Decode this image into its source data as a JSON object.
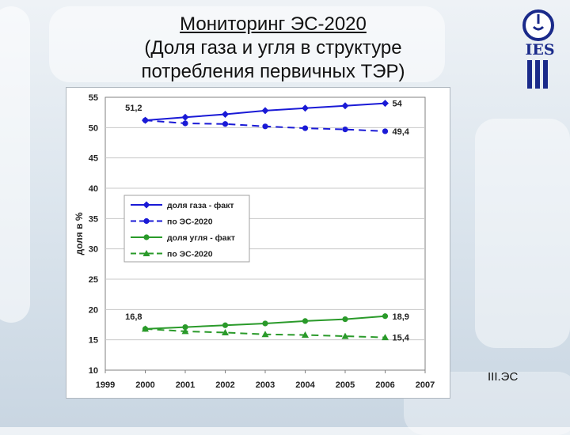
{
  "slide": {
    "title_line1": "Мониторинг ЭС-2020",
    "title_line2": "(Доля газа и угля в структуре",
    "title_line3": "потребления первичных ТЭР)",
    "logo_text": "IES",
    "footer_label": "III.ЭС"
  },
  "chart_data": {
    "type": "line",
    "title": "",
    "xlabel": "",
    "ylabel": "доля в %",
    "xlim": [
      1999,
      2007
    ],
    "ylim": [
      10,
      55
    ],
    "x_ticks": [
      1999,
      2000,
      2001,
      2002,
      2003,
      2004,
      2005,
      2006,
      2007
    ],
    "y_ticks": [
      10,
      15,
      20,
      25,
      30,
      35,
      40,
      45,
      50,
      55
    ],
    "grid": "horizontal",
    "legend_position": "left-middle",
    "series": [
      {
        "name": "доля газа - факт",
        "color": "#1a1ad6",
        "style": "solid",
        "marker": "diamond",
        "x": [
          2000,
          2001,
          2002,
          2003,
          2004,
          2005,
          2006
        ],
        "y": [
          51.2,
          51.7,
          52.2,
          52.8,
          53.2,
          53.6,
          54.0
        ]
      },
      {
        "name": "по ЭС-2020",
        "color": "#1a1ad6",
        "style": "dashed",
        "marker": "circle",
        "x": [
          2000,
          2001,
          2002,
          2003,
          2004,
          2005,
          2006
        ],
        "y": [
          51.2,
          50.7,
          50.6,
          50.2,
          49.9,
          49.7,
          49.4
        ]
      },
      {
        "name": "доля угля - факт",
        "color": "#2a9a2a",
        "style": "solid",
        "marker": "circle",
        "x": [
          2000,
          2001,
          2002,
          2003,
          2004,
          2005,
          2006
        ],
        "y": [
          16.8,
          17.1,
          17.4,
          17.7,
          18.1,
          18.4,
          18.9
        ]
      },
      {
        "name": "по ЭС-2020",
        "color": "#2a9a2a",
        "style": "dashed",
        "marker": "triangle",
        "x": [
          2000,
          2001,
          2002,
          2003,
          2004,
          2005,
          2006
        ],
        "y": [
          16.8,
          16.4,
          16.2,
          15.9,
          15.8,
          15.6,
          15.4
        ]
      }
    ],
    "annotations": [
      {
        "text": "51,2",
        "x": 2000,
        "y": 51.2,
        "placement": "above-left"
      },
      {
        "text": "54",
        "x": 2006,
        "y": 54.0,
        "placement": "right"
      },
      {
        "text": "49,4",
        "x": 2006,
        "y": 49.4,
        "placement": "right"
      },
      {
        "text": "16,8",
        "x": 2000,
        "y": 16.8,
        "placement": "above-left"
      },
      {
        "text": "18,9",
        "x": 2006,
        "y": 18.9,
        "placement": "right"
      },
      {
        "text": "15,4",
        "x": 2006,
        "y": 15.4,
        "placement": "right"
      }
    ]
  }
}
